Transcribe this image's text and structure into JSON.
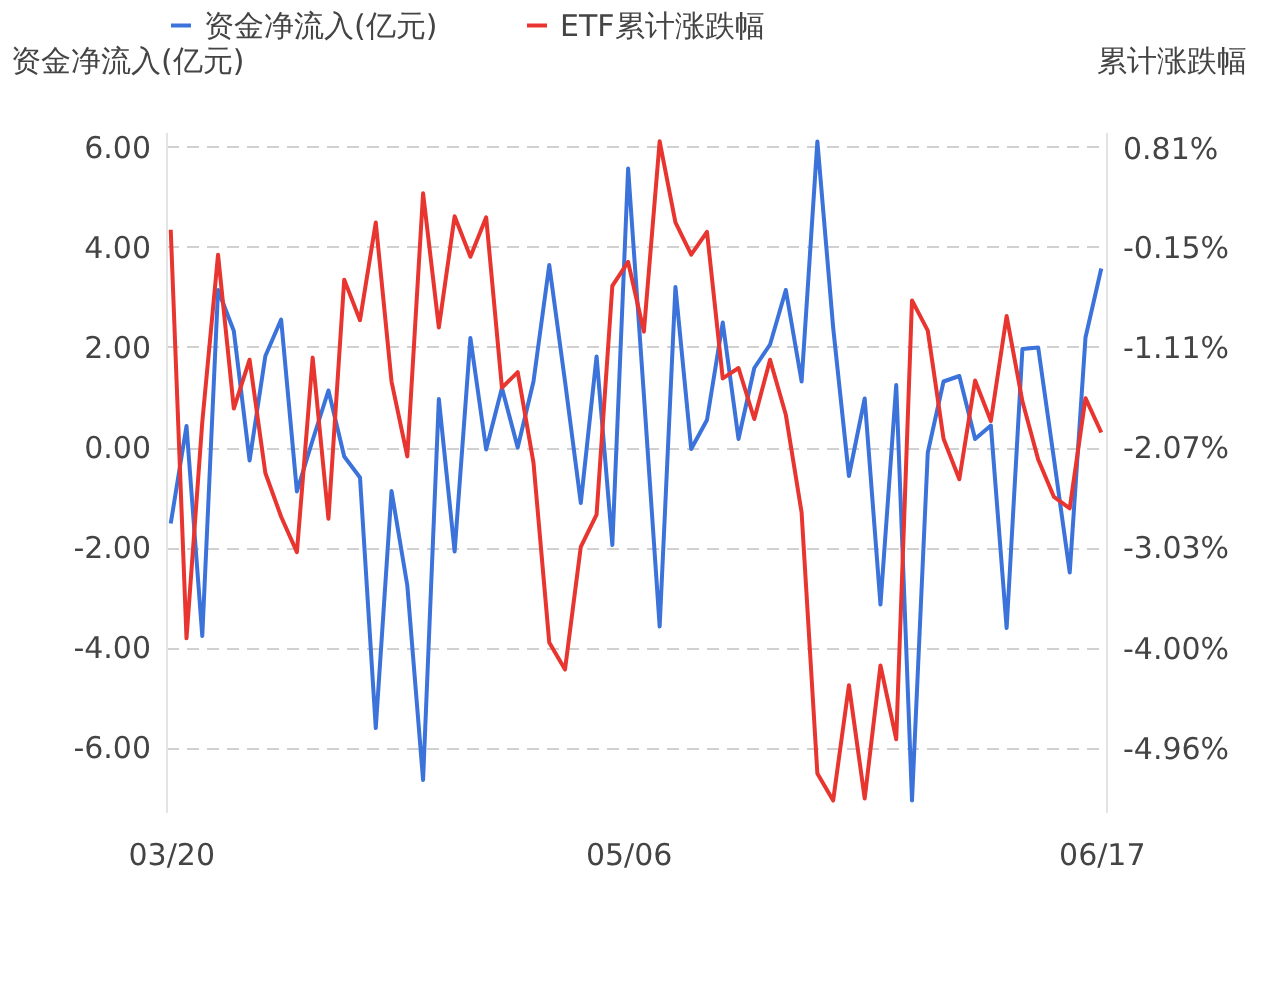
{
  "chart_data": {
    "type": "line",
    "ylabel": "资金净流入(亿元)",
    "y2label": "累计涨跌幅",
    "categories": [
      "03/20",
      null,
      null,
      null,
      null,
      null,
      null,
      null,
      null,
      null,
      null,
      null,
      null,
      null,
      null,
      null,
      null,
      null,
      null,
      null,
      null,
      null,
      null,
      null,
      null,
      null,
      null,
      null,
      null,
      "05/06",
      null,
      null,
      null,
      null,
      null,
      null,
      null,
      null,
      null,
      null,
      null,
      null,
      null,
      null,
      null,
      null,
      null,
      null,
      null,
      null,
      null,
      null,
      null,
      null,
      null,
      null,
      null,
      null,
      null,
      "06/17"
    ],
    "series": [
      {
        "name": "资金净流入(亿元)",
        "color": "#3b73db",
        "values": [
          -1.53,
          0.42,
          -3.78,
          3.14,
          2.32,
          -0.27,
          1.82,
          2.55,
          -0.89,
          0.14,
          1.13,
          -0.19,
          -0.61,
          -5.62,
          -0.88,
          -2.77,
          -6.66,
          0.96,
          -2.09,
          2.18,
          -0.05,
          1.18,
          -0.01,
          1.31,
          3.64,
          1.31,
          -1.12,
          1.81,
          -1.96,
          5.57,
          1.04,
          -3.59,
          3.2,
          -0.04,
          0.54,
          2.49,
          0.16,
          1.58,
          2.05,
          3.14,
          1.31,
          6.11,
          2.39,
          -0.58,
          0.97,
          -3.15,
          1.24,
          -7.07,
          -0.11,
          1.31,
          1.42,
          0.16,
          0.43,
          -3.62,
          1.96,
          1.99,
          -0.24,
          -2.51,
          2.19,
          3.57
        ]
      },
      {
        "name": "ETF累计涨跌幅",
        "color": "#e8352f",
        "axis": "y2",
        "values": [
          0.02,
          -3.91,
          -1.83,
          -0.22,
          -1.7,
          -1.23,
          -2.32,
          -2.74,
          -3.08,
          -1.21,
          -2.76,
          -0.46,
          -0.85,
          0.09,
          -1.44,
          -2.16,
          0.37,
          -0.92,
          0.15,
          -0.24,
          0.14,
          -1.5,
          -1.35,
          -2.22,
          -3.95,
          -4.21,
          -3.03,
          -2.72,
          -0.52,
          -0.29,
          -0.96,
          0.87,
          0.09,
          -0.22,
          0.0,
          -1.41,
          -1.31,
          -1.8,
          -1.23,
          -1.76,
          -2.7,
          -5.21,
          -5.47,
          -4.36,
          -5.45,
          -4.17,
          -4.88,
          -0.66,
          -0.95,
          -1.99,
          -2.38,
          -1.43,
          -1.82,
          -0.81,
          -1.63,
          -2.19,
          -2.55,
          -2.66,
          -1.6,
          -1.93
        ]
      }
    ],
    "ylim": [
      -7.3,
      6.3
    ],
    "yticks": [
      {
        "value": -6,
        "label": "-6.00"
      },
      {
        "value": -4,
        "label": "-4.00"
      },
      {
        "value": -2,
        "label": "-2.00"
      },
      {
        "value": 0,
        "label": "0.00"
      },
      {
        "value": 2,
        "label": "2.00"
      },
      {
        "value": 4,
        "label": "4.00"
      },
      {
        "value": 6,
        "label": "6.00"
      }
    ],
    "y2lim": [
      -5.58,
      0.96
    ],
    "y2ticks": [
      {
        "value": -4.96,
        "label": "-4.96%"
      },
      {
        "value": -4.0,
        "label": "-4.00%"
      },
      {
        "value": -3.03,
        "label": "-3.03%"
      },
      {
        "value": -2.07,
        "label": "-2.07%"
      },
      {
        "value": -1.11,
        "label": "-1.11%"
      },
      {
        "value": -0.15,
        "label": "-0.15%"
      },
      {
        "value": 0.81,
        "label": "0.81%"
      }
    ],
    "grid": "y",
    "legend": "top",
    "line_style": "solid"
  }
}
